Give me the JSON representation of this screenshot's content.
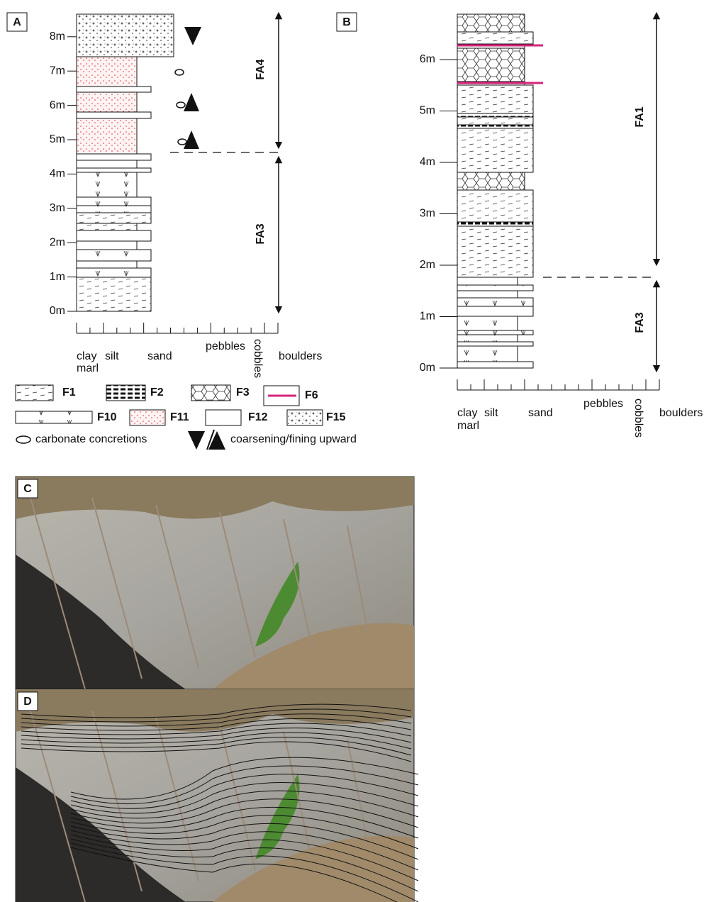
{
  "panel_a": {
    "label": "A",
    "depth_labels": [
      "0m",
      "1m",
      "2m",
      "3m",
      "4m",
      "5m",
      "6m",
      "7m",
      "8m"
    ],
    "facies_associations": [
      "FA4",
      "FA3"
    ],
    "grain_size_labels": [
      "clay",
      "silt",
      "marl",
      "sand",
      "pebbles",
      "cobbles",
      "boulders"
    ]
  },
  "panel_b": {
    "label": "B",
    "depth_labels": [
      "0m",
      "1m",
      "2m",
      "3m",
      "4m",
      "5m",
      "6m"
    ],
    "facies_associations": [
      "FA1",
      "FA3"
    ],
    "grain_size_labels": [
      "clay",
      "silt",
      "marl",
      "sand",
      "pebbles",
      "cobbles",
      "boulders"
    ]
  },
  "legend": {
    "facies": [
      "F1",
      "F2",
      "F3",
      "F6",
      "F10",
      "F11",
      "F12",
      "F15"
    ],
    "symbols": [
      "carbonate concretions",
      "coarsening/fining upward"
    ]
  },
  "panel_c": {
    "label": "C"
  },
  "panel_d": {
    "label": "D"
  }
}
